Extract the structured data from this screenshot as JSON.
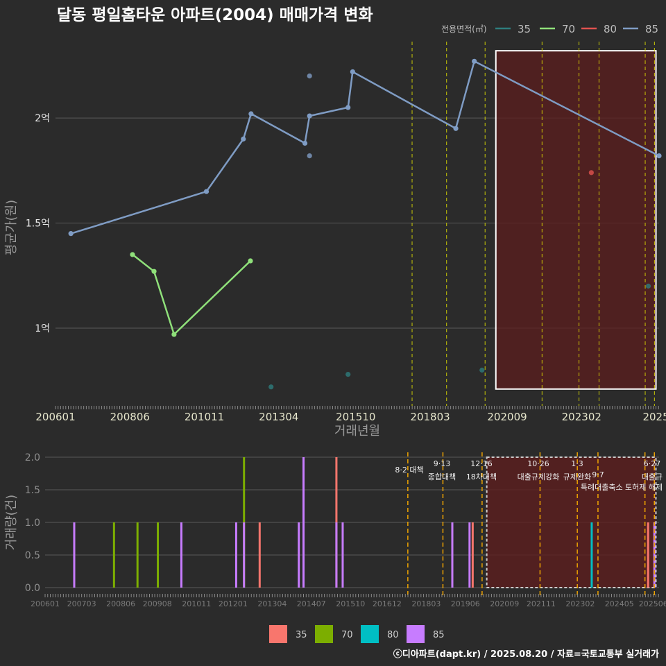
{
  "title": "달동 평일홈타운 아파트(2004) 매매가격 변화",
  "credit": "ⓒ디아파트(dapt.kr) / 2025.08.20 / 자료=국토교통부 실거래가",
  "colors": {
    "background": "#2b2b2b",
    "grid": "#5a5a5a",
    "area35_top": "#2e7d7d",
    "area70_top": "#8fe07a",
    "area80_top": "#e0524f",
    "area85_top": "#7f9cc4",
    "area35_bot": "#f8766d",
    "area70_bot": "#7cae00",
    "area80_bot": "#00bfc4",
    "area85_bot": "#c77cff",
    "policy_top": "#e6e600",
    "policy_bot": "#f0a500",
    "highlight_fill": "#5c1e1e",
    "highlight_border": "#ffffff"
  },
  "chart_data": [
    {
      "type": "line",
      "title": "달동 평일홈타운 아파트(2004) 매매가격 변화",
      "xlabel": "거래년월",
      "ylabel": "평균가(원)",
      "legend_title": "전용면적(㎡)",
      "xlim": [
        2006.0,
        2025.6
      ],
      "ylim": [
        0.63,
        2.38
      ],
      "x_ticks": [
        {
          "label": "200601",
          "x": 2006.0
        },
        {
          "label": "200806",
          "x": 2008.417
        },
        {
          "label": "201011",
          "x": 2010.833
        },
        {
          "label": "201304",
          "x": 2013.25
        },
        {
          "label": "201510",
          "x": 2015.75
        },
        {
          "label": "201803",
          "x": 2018.167
        },
        {
          "label": "202009",
          "x": 2020.667
        },
        {
          "label": "202302",
          "x": 2023.083
        },
        {
          "label": "2025",
          "x": 2025.5
        }
      ],
      "y_ticks": [
        {
          "label": "1억",
          "y": 1.0
        },
        {
          "label": "1.5억",
          "y": 1.5
        },
        {
          "label": "2억",
          "y": 2.0
        }
      ],
      "series": [
        {
          "name": "35",
          "mode": "points",
          "points": [
            [
              2013.0,
              0.72
            ],
            [
              2015.5,
              0.78
            ],
            [
              2019.85,
              0.8
            ],
            [
              2025.25,
              1.2
            ]
          ]
        },
        {
          "name": "70",
          "mode": "line",
          "points": [
            [
              2008.5,
              1.35
            ],
            [
              2009.2,
              1.27
            ],
            [
              2009.85,
              0.97
            ],
            [
              2012.33,
              1.32
            ]
          ]
        },
        {
          "name": "80",
          "mode": "points",
          "points": [
            [
              2023.4,
              1.74
            ]
          ]
        },
        {
          "name": "85",
          "mode": "line",
          "points": [
            [
              2006.5,
              1.45
            ],
            [
              2010.9,
              1.65
            ],
            [
              2012.1,
              1.9
            ],
            [
              2012.35,
              2.02
            ],
            [
              2014.1,
              1.88
            ],
            [
              2014.25,
              2.01
            ],
            [
              2015.5,
              2.05
            ],
            [
              2015.65,
              2.22
            ],
            [
              2019.0,
              1.95
            ],
            [
              2019.6,
              2.27
            ],
            [
              2025.6,
              1.82
            ]
          ]
        },
        {
          "name": "85",
          "mode": "points",
          "points": [
            [
              2014.25,
              2.2
            ],
            [
              2014.25,
              1.82
            ]
          ]
        }
      ],
      "policy_lines": [
        2017.58,
        2018.7,
        2019.95,
        2021.8,
        2023.0,
        2023.65,
        2025.15,
        2025.45
      ],
      "highlight": {
        "x0": 2020.3,
        "x1": 2025.5,
        "y0": 0.71,
        "y1": 2.32
      }
    },
    {
      "type": "bar",
      "ylabel": "거래량(건)",
      "xlim": [
        2006.0,
        2025.6
      ],
      "ylim": [
        0,
        2.0
      ],
      "x_ticks": [
        "200601",
        "200703",
        "200806",
        "200908",
        "201011",
        "201201",
        "201304",
        "201407",
        "201510",
        "201612",
        "201803",
        "201906",
        "202009",
        "202111",
        "202302",
        "202405",
        "202506"
      ],
      "y_ticks": [
        "0.0",
        "0.5",
        "1.0",
        "1.5",
        "2.0"
      ],
      "legend": [
        "35",
        "70",
        "80",
        "85"
      ],
      "bars": [
        {
          "x": 2006.93,
          "series": "85",
          "value": 1
        },
        {
          "x": 2008.2,
          "series": "70",
          "value": 1
        },
        {
          "x": 2008.95,
          "series": "70",
          "value": 1
        },
        {
          "x": 2009.6,
          "series": "70",
          "value": 1
        },
        {
          "x": 2010.35,
          "series": "85",
          "value": 1
        },
        {
          "x": 2012.1,
          "series": "85",
          "value": 1
        },
        {
          "x": 2012.35,
          "series": "70",
          "value": 2
        },
        {
          "x": 2012.35,
          "series": "85",
          "value": 1
        },
        {
          "x": 2012.85,
          "series": "35",
          "value": 1
        },
        {
          "x": 2014.1,
          "series": "85",
          "value": 1
        },
        {
          "x": 2014.25,
          "series": "85",
          "value": 2
        },
        {
          "x": 2015.3,
          "series": "35",
          "value": 2
        },
        {
          "x": 2015.3,
          "series": "85",
          "value": 1
        },
        {
          "x": 2015.5,
          "series": "85",
          "value": 1
        },
        {
          "x": 2019.0,
          "series": "85",
          "value": 1
        },
        {
          "x": 2019.55,
          "series": "85",
          "value": 1
        },
        {
          "x": 2019.65,
          "series": "35",
          "value": 1
        },
        {
          "x": 2023.45,
          "series": "80",
          "value": 1
        },
        {
          "x": 2025.25,
          "series": "35",
          "value": 1
        },
        {
          "x": 2025.45,
          "series": "85",
          "value": 1
        }
      ],
      "policy_lines": [
        2017.58,
        2018.7,
        2019.95,
        2021.8,
        2022.99,
        2023.65,
        2025.15,
        2025.45
      ],
      "annotations": [
        {
          "date": "8·2 대책",
          "label": ""
        },
        {
          "date": "9·13",
          "label": "종합대책"
        },
        {
          "date": "12·16",
          "label": "18차대책"
        },
        {
          "date": "10·26",
          "label": "대출규제강화"
        },
        {
          "date": "1·3",
          "label": "규제완화"
        },
        {
          "date": "",
          "label": "9·7"
        },
        {
          "date": "",
          "label": "특례대출축소 토허제 해제"
        },
        {
          "date": "6·27",
          "label": "대출규"
        }
      ],
      "highlight": {
        "x0": 2020.1,
        "x1": 2025.5
      }
    }
  ]
}
